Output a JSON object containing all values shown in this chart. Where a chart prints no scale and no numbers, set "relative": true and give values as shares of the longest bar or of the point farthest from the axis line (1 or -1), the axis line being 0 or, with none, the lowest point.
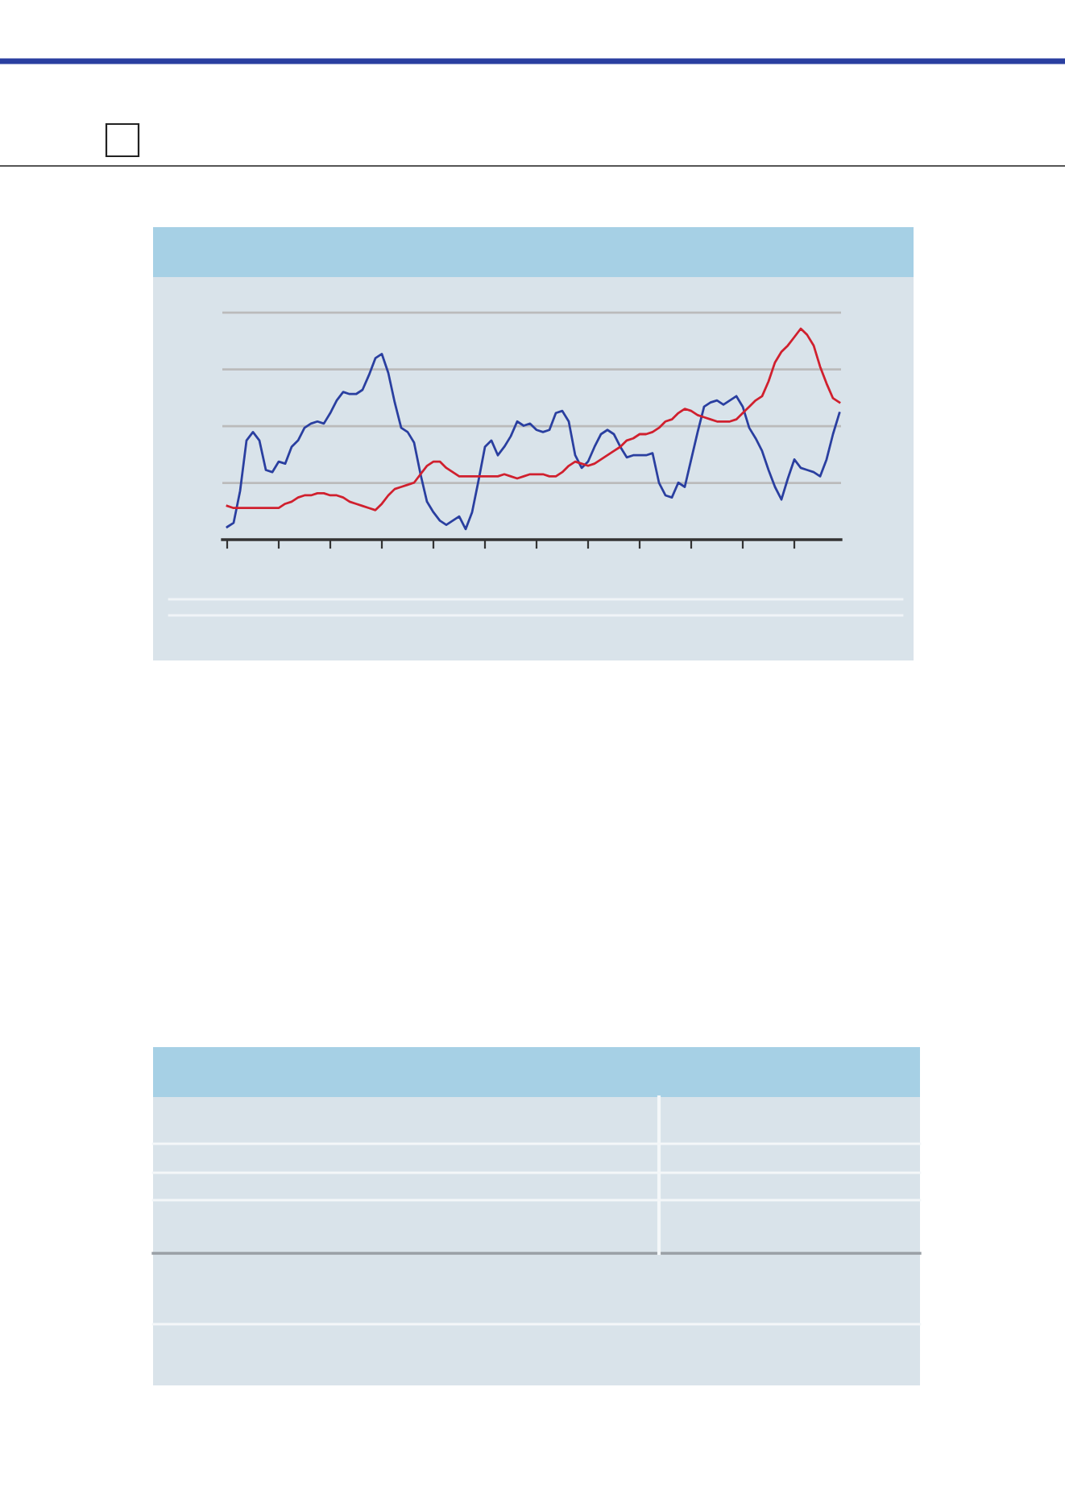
{
  "chart_data": {
    "type": "line",
    "relative": true,
    "grid": "y",
    "legend": false,
    "marker": "none",
    "line_style": "solid",
    "categories": [
      null,
      null,
      null,
      null,
      null,
      null,
      null,
      null,
      null,
      null,
      null,
      null,
      null,
      null,
      null,
      null,
      null,
      null,
      null,
      null,
      null,
      null,
      null,
      null,
      null,
      null,
      null,
      null,
      null,
      null,
      null,
      null,
      null,
      null,
      null,
      null,
      null,
      null,
      null,
      null,
      null,
      null,
      null,
      null,
      null,
      null,
      null,
      null,
      null,
      null,
      null,
      null,
      null,
      null,
      null,
      null,
      null,
      null,
      null,
      null,
      null,
      null,
      null,
      null,
      null,
      null,
      null,
      null,
      null,
      null,
      null,
      null,
      null,
      null,
      null,
      null,
      null,
      null,
      null,
      null,
      null,
      null,
      null,
      null,
      null,
      null,
      null,
      null,
      null,
      null,
      null,
      null,
      null,
      null,
      null,
      null
    ],
    "series": [
      {
        "color": "#2a3fa0",
        "values": [
          0.06,
          0.08,
          0.23,
          0.47,
          0.51,
          0.47,
          0.33,
          0.32,
          0.37,
          0.36,
          0.44,
          0.47,
          0.53,
          0.55,
          0.56,
          0.55,
          0.6,
          0.66,
          0.7,
          0.69,
          0.69,
          0.71,
          0.78,
          0.86,
          0.88,
          0.79,
          0.65,
          0.53,
          0.51,
          0.46,
          0.31,
          0.18,
          0.13,
          0.09,
          0.07,
          0.09,
          0.11,
          0.05,
          0.13,
          0.28,
          0.44,
          0.47,
          0.4,
          0.44,
          0.49,
          0.56,
          0.54,
          0.55,
          0.52,
          0.51,
          0.52,
          0.6,
          0.61,
          0.56,
          0.4,
          0.34,
          0.37,
          0.44,
          0.5,
          0.52,
          0.5,
          0.44,
          0.39,
          0.4,
          0.4,
          0.4,
          0.41,
          0.27,
          0.21,
          0.2,
          0.27,
          0.25,
          0.38,
          0.51,
          0.63,
          0.65,
          0.66,
          0.64,
          0.66,
          0.68,
          0.63,
          0.53,
          0.48,
          0.42,
          0.33,
          0.25,
          0.19,
          0.29,
          0.38,
          0.34,
          0.33,
          0.32,
          0.3,
          0.38,
          0.5,
          0.6
        ]
      },
      {
        "color": "#d0202e",
        "values": [
          0.16,
          0.15,
          0.15,
          0.15,
          0.15,
          0.15,
          0.15,
          0.15,
          0.15,
          0.17,
          0.18,
          0.2,
          0.21,
          0.21,
          0.22,
          0.22,
          0.21,
          0.21,
          0.2,
          0.18,
          0.17,
          0.16,
          0.15,
          0.14,
          0.17,
          0.21,
          0.24,
          0.25,
          0.26,
          0.27,
          0.31,
          0.35,
          0.37,
          0.37,
          0.34,
          0.32,
          0.3,
          0.3,
          0.3,
          0.3,
          0.3,
          0.3,
          0.3,
          0.31,
          0.3,
          0.29,
          0.3,
          0.31,
          0.31,
          0.31,
          0.3,
          0.3,
          0.32,
          0.35,
          0.37,
          0.36,
          0.35,
          0.36,
          0.38,
          0.4,
          0.42,
          0.44,
          0.47,
          0.48,
          0.5,
          0.5,
          0.51,
          0.53,
          0.56,
          0.57,
          0.6,
          0.62,
          0.61,
          0.59,
          0.58,
          0.57,
          0.56,
          0.56,
          0.56,
          0.57,
          0.6,
          0.63,
          0.66,
          0.68,
          0.75,
          0.84,
          0.89,
          0.92,
          0.96,
          1,
          0.97,
          0.92,
          0.82,
          0.74,
          0.67,
          0.65
        ]
      }
    ]
  }
}
